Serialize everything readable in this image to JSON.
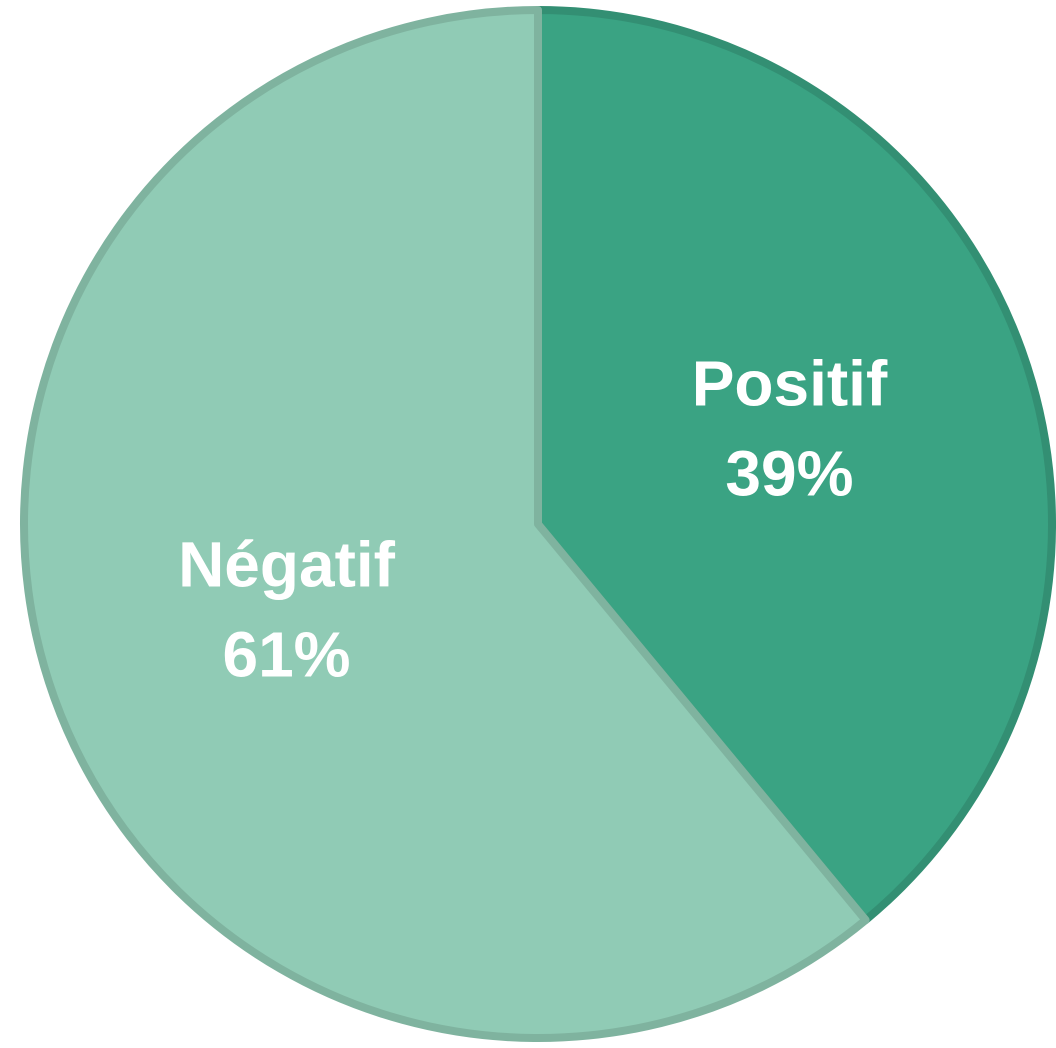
{
  "chart_data": {
    "type": "pie",
    "categories": [
      "Positif",
      "Négatif"
    ],
    "values": [
      39,
      61
    ],
    "value_labels": [
      "39%",
      "61%"
    ],
    "colors": [
      "#3aa383",
      "#90cbb5"
    ]
  }
}
